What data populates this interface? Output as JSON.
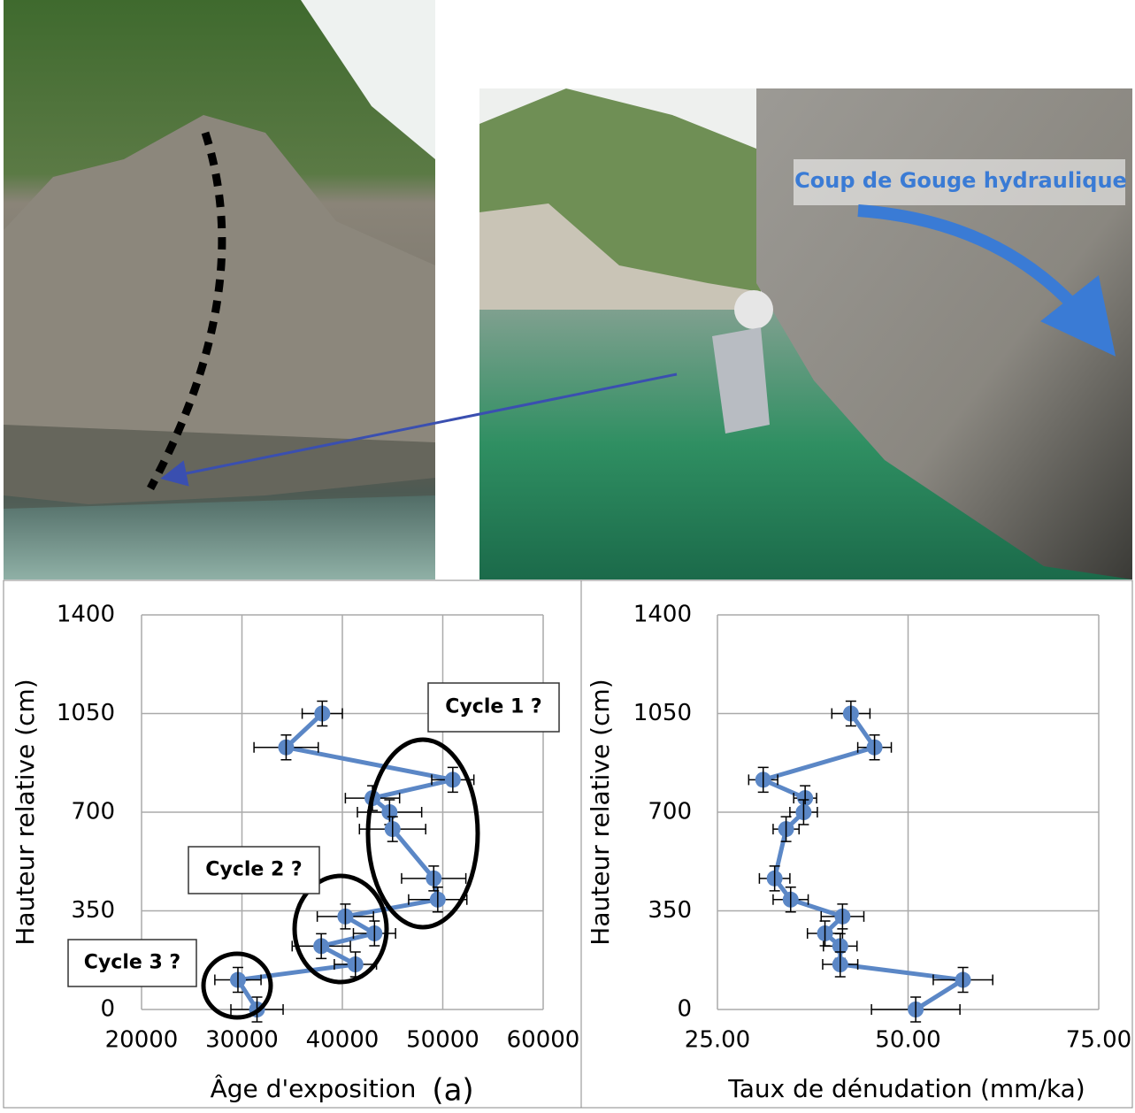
{
  "photo_annotation": "Coup de Gouge hydraulique",
  "panel_label": "(a)",
  "chart_data": [
    {
      "type": "line",
      "x_title": "Âge d'exposition",
      "y_title": "Hauteur relative (cm)",
      "color": "#5b87c6",
      "grid": true,
      "x": [
        38000,
        34400,
        51000,
        43000,
        44700,
        45000,
        49100,
        49500,
        40300,
        43200,
        37900,
        41300,
        29600,
        31500
      ],
      "xerr": [
        2000,
        3200,
        2100,
        2700,
        3200,
        3300,
        3200,
        2900,
        2800,
        2100,
        2900,
        2100,
        2300,
        2600
      ],
      "values": [
        1050,
        930,
        815,
        750,
        700,
        640,
        465,
        390,
        330,
        270,
        225,
        160,
        105,
        0
      ],
      "xlim": [
        20000,
        60000
      ],
      "xticks": [
        20000,
        30000,
        40000,
        50000,
        60000
      ],
      "ylim": [
        0,
        1400
      ],
      "yticks": [
        0,
        350,
        700,
        1050,
        1400
      ],
      "annotations": [
        "Cycle 1 ?",
        "Cycle 2 ?",
        "Cycle 3 ?"
      ]
    },
    {
      "type": "line",
      "x_title": "Taux de dénudation (mm/ka)",
      "y_title": "Hauteur relative (cm)",
      "color": "#5b87c6",
      "grid": true,
      "x": [
        42.5,
        45.6,
        31.0,
        36.5,
        36.3,
        34.0,
        32.5,
        34.6,
        41.4,
        39.1,
        41.1,
        41.1,
        57.2,
        51.0
      ],
      "xerr": [
        2.5,
        2.2,
        1.9,
        1.5,
        1.8,
        1.7,
        2.0,
        2.3,
        2.8,
        2.3,
        2.2,
        2.3,
        3.9,
        5.8
      ],
      "values": [
        1050,
        930,
        815,
        750,
        700,
        640,
        465,
        390,
        330,
        270,
        225,
        160,
        105,
        0
      ],
      "xlim": [
        25,
        75
      ],
      "xticks": [
        {
          "value": 25,
          "label": "25.00"
        },
        {
          "value": 50,
          "label": "50.00"
        },
        {
          "value": 75,
          "label": "75.00"
        }
      ],
      "ylim": [
        0,
        1400
      ],
      "yticks": [
        0,
        350,
        700,
        1050,
        1400
      ]
    }
  ]
}
